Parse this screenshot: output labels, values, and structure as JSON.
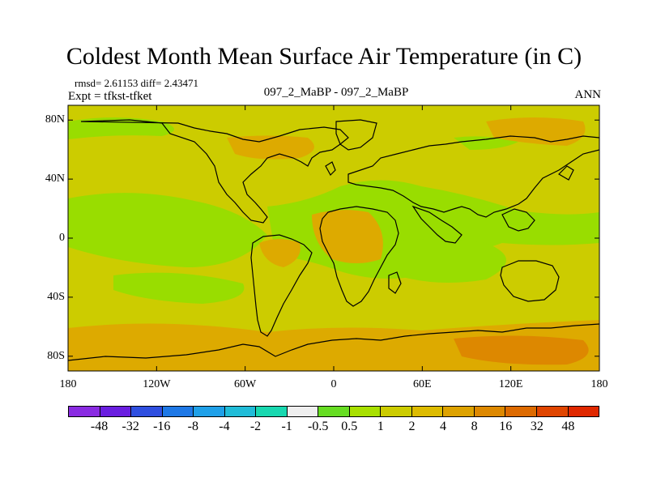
{
  "header": {
    "title": "Coldest Month Mean Surface Air Temperature (in C)",
    "stats": "rmsd= 2.61153  diff= 2.43471",
    "experiment": "Expt = tfkst-tfket",
    "case_label": "097_2_MaBP - 097_2_MaBP",
    "season": "ANN"
  },
  "map": {
    "lon_range": [
      -180,
      180
    ],
    "lat_range": [
      -90,
      90
    ],
    "lat_ticks": [
      {
        "label": "80N",
        "value": 80
      },
      {
        "label": "40N",
        "value": 40
      },
      {
        "label": "0",
        "value": 0
      },
      {
        "label": "40S",
        "value": -40
      },
      {
        "label": "80S",
        "value": -80
      }
    ],
    "lon_ticks": [
      {
        "label": "180",
        "value": -180
      },
      {
        "label": "120W",
        "value": -120
      },
      {
        "label": "60W",
        "value": -60
      },
      {
        "label": "0",
        "value": 0
      },
      {
        "label": "60E",
        "value": 60
      },
      {
        "label": "120E",
        "value": 120
      },
      {
        "label": "180",
        "value": 180
      }
    ],
    "colors": {
      "background_yellow": "#cccc00",
      "band_green": "#99dd00",
      "warm_orange": "#ddaa00",
      "hot_orange": "#dd8800",
      "coastline": "#000000"
    }
  },
  "colorbar": {
    "colors": [
      "#8a2be2",
      "#6a1ee0",
      "#2f4fe0",
      "#1e78e6",
      "#1fa0e8",
      "#20bcd8",
      "#18d8b0",
      "#eeeeee",
      "#66dd22",
      "#a8e000",
      "#cccc00",
      "#ddbb00",
      "#dda200",
      "#dd8800",
      "#dd6a00",
      "#e04500",
      "#e02800"
    ],
    "labels": [
      "-48",
      "-32",
      "-16",
      "-8",
      "-4",
      "-2",
      "-1",
      "-0.5",
      "0.5",
      "1",
      "2",
      "4",
      "8",
      "16",
      "32",
      "48"
    ]
  }
}
